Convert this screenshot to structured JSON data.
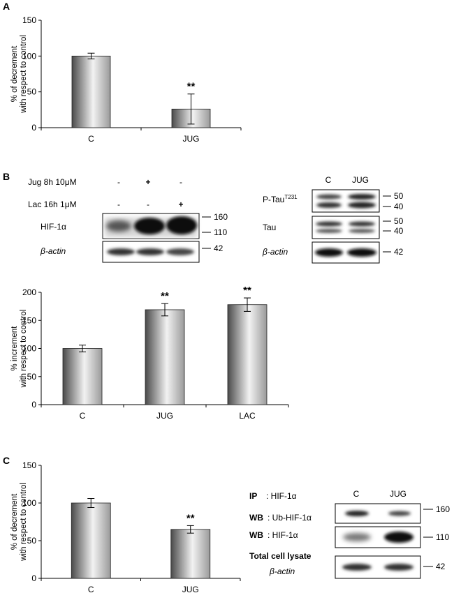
{
  "panel_letters": {
    "a": "A",
    "b": "B",
    "c": "C"
  },
  "chart_data": [
    {
      "type": "bar",
      "panel": "A",
      "categories": [
        "C",
        "JUG"
      ],
      "values": [
        100,
        26
      ],
      "errors": [
        4,
        21
      ],
      "annotations": [
        "",
        "**"
      ],
      "ylabel_lines": [
        "% of decrement",
        "with respect to control"
      ],
      "ylim": [
        0,
        150
      ],
      "yticks": [
        0,
        50,
        100,
        150
      ]
    },
    {
      "type": "bar",
      "panel": "B",
      "categories": [
        "C",
        "JUG",
        "LAC"
      ],
      "values": [
        100,
        169,
        178
      ],
      "errors": [
        6,
        11,
        12
      ],
      "annotations": [
        "",
        "**",
        "**"
      ],
      "ylabel_lines": [
        "% increment",
        "with respect to control"
      ],
      "ylim": [
        0,
        200
      ],
      "yticks": [
        0,
        50,
        100,
        150,
        200
      ]
    },
    {
      "type": "bar",
      "panel": "C",
      "categories": [
        "C",
        "JUG"
      ],
      "values": [
        100,
        65
      ],
      "errors": [
        6,
        5
      ],
      "annotations": [
        "",
        "**"
      ],
      "ylabel_lines": [
        "% of decrement",
        "with respect to control"
      ],
      "ylim": [
        0,
        150
      ],
      "yticks": [
        0,
        50,
        100,
        150
      ]
    }
  ],
  "blot_b_left": {
    "treatment_rows": [
      {
        "label": "Jug 8h 10μM",
        "signs": [
          "-",
          "+",
          "-"
        ]
      },
      {
        "label": "Lac 16h 1μM",
        "signs": [
          "-",
          "-",
          "+"
        ]
      }
    ],
    "rows": [
      {
        "label": "HIF-1α",
        "markers": [
          "160",
          "110"
        ]
      },
      {
        "label": "β-actin",
        "markers": [
          "42"
        ]
      }
    ]
  },
  "blot_b_right": {
    "lanes": [
      "C",
      "JUG"
    ],
    "rows": [
      {
        "label": "P-Tau",
        "superscript": "T231",
        "markers": [
          "50",
          "40"
        ]
      },
      {
        "label": "Tau",
        "markers": [
          "50",
          "40"
        ]
      },
      {
        "label": "β-actin",
        "markers": [
          "42"
        ]
      }
    ]
  },
  "blot_c": {
    "lanes": [
      "C",
      "JUG"
    ],
    "ip_prefix": "IP",
    "ip_label": ": HIF-1α",
    "wb_prefix": "WB",
    "rows": [
      {
        "label": ": Ub-HIF-1α",
        "markers": [
          "160"
        ]
      },
      {
        "label": ": HIF-1α",
        "markers": [
          "110"
        ]
      }
    ],
    "lysate_title": "Total cell lysate",
    "lysate_row": {
      "label": "β-actin",
      "markers": [
        "42"
      ]
    }
  }
}
